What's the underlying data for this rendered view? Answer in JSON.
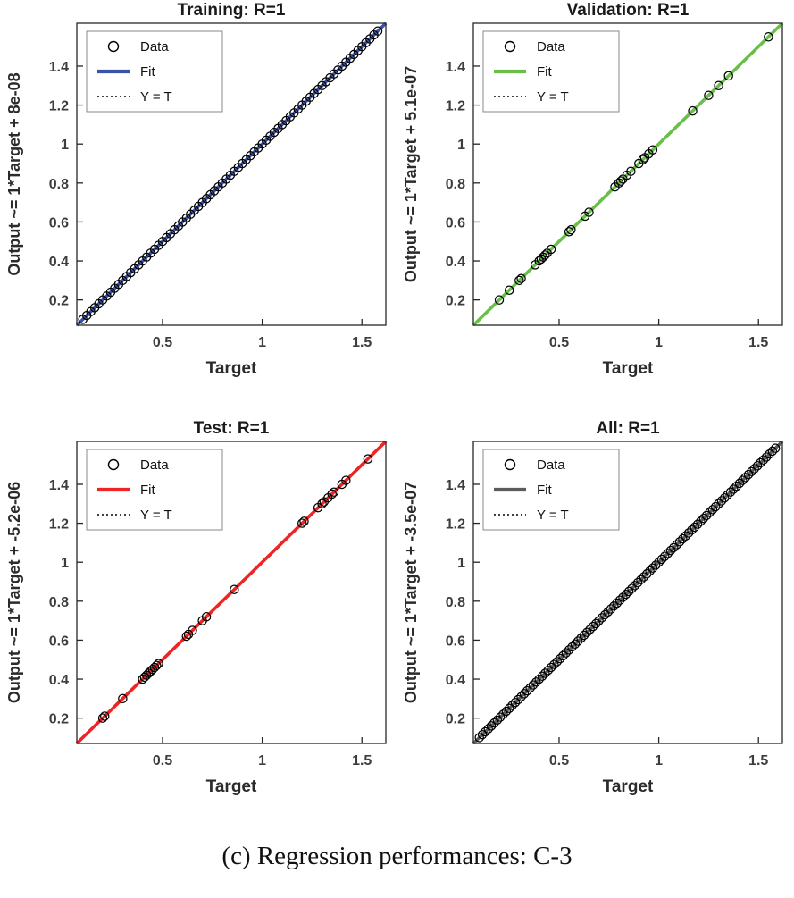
{
  "caption": "(c) Regression performances: C-3",
  "chart_data": [
    {
      "type": "scatter",
      "key": "training",
      "title": "Training: R=1",
      "xlabel": "Target",
      "ylabel": "Output ~= 1*Target + 8e-08",
      "r_value": 1,
      "fit": {
        "slope": 1,
        "intercept": 8e-08
      },
      "fit_color": "#3b53a5",
      "data_marker_color": "#000000",
      "identity_line_color": "#000000",
      "xlim": [
        0.07,
        1.62
      ],
      "ylim": [
        0.07,
        1.62
      ],
      "xticks": [
        0.5,
        1,
        1.5
      ],
      "yticks": [
        0.2,
        0.4,
        0.6,
        0.8,
        1,
        1.2,
        1.4
      ],
      "legend": [
        "Data",
        "Fit",
        "Y = T"
      ],
      "legend_position": "top-left",
      "grid": false,
      "points": [
        0.1,
        0.12,
        0.14,
        0.16,
        0.18,
        0.2,
        0.22,
        0.24,
        0.26,
        0.28,
        0.3,
        0.32,
        0.34,
        0.36,
        0.38,
        0.4,
        0.42,
        0.44,
        0.46,
        0.48,
        0.5,
        0.52,
        0.54,
        0.56,
        0.58,
        0.6,
        0.62,
        0.64,
        0.66,
        0.68,
        0.7,
        0.72,
        0.74,
        0.76,
        0.78,
        0.8,
        0.82,
        0.84,
        0.86,
        0.88,
        0.9,
        0.92,
        0.94,
        0.96,
        0.98,
        1.0,
        1.02,
        1.04,
        1.06,
        1.08,
        1.1,
        1.12,
        1.14,
        1.16,
        1.18,
        1.2,
        1.22,
        1.24,
        1.26,
        1.28,
        1.3,
        1.32,
        1.34,
        1.36,
        1.38,
        1.4,
        1.42,
        1.44,
        1.46,
        1.48,
        1.5,
        1.52,
        1.54,
        1.56,
        1.58
      ]
    },
    {
      "type": "scatter",
      "key": "validation",
      "title": "Validation: R=1",
      "xlabel": "Target",
      "ylabel": "Output ~= 1*Target + 5.1e-07",
      "r_value": 1,
      "fit": {
        "slope": 1,
        "intercept": 5.1e-07
      },
      "fit_color": "#6abf4b",
      "data_marker_color": "#000000",
      "identity_line_color": "#000000",
      "xlim": [
        0.07,
        1.62
      ],
      "ylim": [
        0.07,
        1.62
      ],
      "xticks": [
        0.5,
        1,
        1.5
      ],
      "yticks": [
        0.2,
        0.4,
        0.6,
        0.8,
        1,
        1.2,
        1.4
      ],
      "legend": [
        "Data",
        "Fit",
        "Y = T"
      ],
      "legend_position": "top-left",
      "grid": false,
      "points": [
        0.2,
        0.25,
        0.3,
        0.31,
        0.38,
        0.4,
        0.41,
        0.42,
        0.43,
        0.44,
        0.46,
        0.55,
        0.56,
        0.63,
        0.65,
        0.78,
        0.8,
        0.81,
        0.82,
        0.84,
        0.86,
        0.9,
        0.92,
        0.93,
        0.95,
        0.97,
        1.17,
        1.25,
        1.3,
        1.35,
        1.55
      ]
    },
    {
      "type": "scatter",
      "key": "test",
      "title": "Test: R=1",
      "xlabel": "Target",
      "ylabel": "Output ~= 1*Target + -5.2e-06",
      "r_value": 1,
      "fit": {
        "slope": 1,
        "intercept": -5.2e-06
      },
      "fit_color": "#ee2524",
      "data_marker_color": "#000000",
      "identity_line_color": "#000000",
      "xlim": [
        0.07,
        1.62
      ],
      "ylim": [
        0.07,
        1.62
      ],
      "xticks": [
        0.5,
        1,
        1.5
      ],
      "yticks": [
        0.2,
        0.4,
        0.6,
        0.8,
        1,
        1.2,
        1.4
      ],
      "legend": [
        "Data",
        "Fit",
        "Y = T"
      ],
      "legend_position": "top-left",
      "grid": false,
      "points": [
        0.2,
        0.21,
        0.3,
        0.4,
        0.41,
        0.42,
        0.43,
        0.44,
        0.45,
        0.46,
        0.47,
        0.48,
        0.62,
        0.63,
        0.65,
        0.7,
        0.72,
        0.86,
        1.2,
        1.21,
        1.28,
        1.3,
        1.31,
        1.33,
        1.35,
        1.36,
        1.4,
        1.42,
        1.53
      ]
    },
    {
      "type": "scatter",
      "key": "all",
      "title": "All: R=1",
      "xlabel": "Target",
      "ylabel": "Output ~= 1*Target + -3.5e-07",
      "r_value": 1,
      "fit": {
        "slope": 1,
        "intercept": -3.5e-07
      },
      "fit_color": "#5c5c5c",
      "data_marker_color": "#000000",
      "identity_line_color": "#000000",
      "xlim": [
        0.07,
        1.62
      ],
      "ylim": [
        0.07,
        1.62
      ],
      "xticks": [
        0.5,
        1,
        1.5
      ],
      "yticks": [
        0.2,
        0.4,
        0.6,
        0.8,
        1,
        1.2,
        1.4
      ],
      "legend": [
        "Data",
        "Fit",
        "Y = T"
      ],
      "legend_position": "top-left",
      "grid": false,
      "points": [
        0.1,
        0.115,
        0.13,
        0.145,
        0.16,
        0.175,
        0.19,
        0.205,
        0.22,
        0.235,
        0.25,
        0.265,
        0.28,
        0.295,
        0.31,
        0.325,
        0.34,
        0.355,
        0.37,
        0.385,
        0.4,
        0.415,
        0.43,
        0.445,
        0.46,
        0.475,
        0.49,
        0.505,
        0.52,
        0.535,
        0.55,
        0.565,
        0.58,
        0.595,
        0.61,
        0.625,
        0.64,
        0.655,
        0.67,
        0.685,
        0.7,
        0.715,
        0.73,
        0.745,
        0.76,
        0.775,
        0.79,
        0.805,
        0.82,
        0.835,
        0.85,
        0.865,
        0.88,
        0.895,
        0.91,
        0.925,
        0.94,
        0.955,
        0.97,
        0.985,
        1.0,
        1.015,
        1.03,
        1.045,
        1.06,
        1.075,
        1.09,
        1.105,
        1.12,
        1.135,
        1.15,
        1.165,
        1.18,
        1.195,
        1.21,
        1.225,
        1.24,
        1.255,
        1.27,
        1.285,
        1.3,
        1.315,
        1.33,
        1.345,
        1.36,
        1.375,
        1.39,
        1.405,
        1.42,
        1.435,
        1.45,
        1.465,
        1.48,
        1.495,
        1.51,
        1.525,
        1.54,
        1.555,
        1.57,
        1.585
      ]
    }
  ]
}
